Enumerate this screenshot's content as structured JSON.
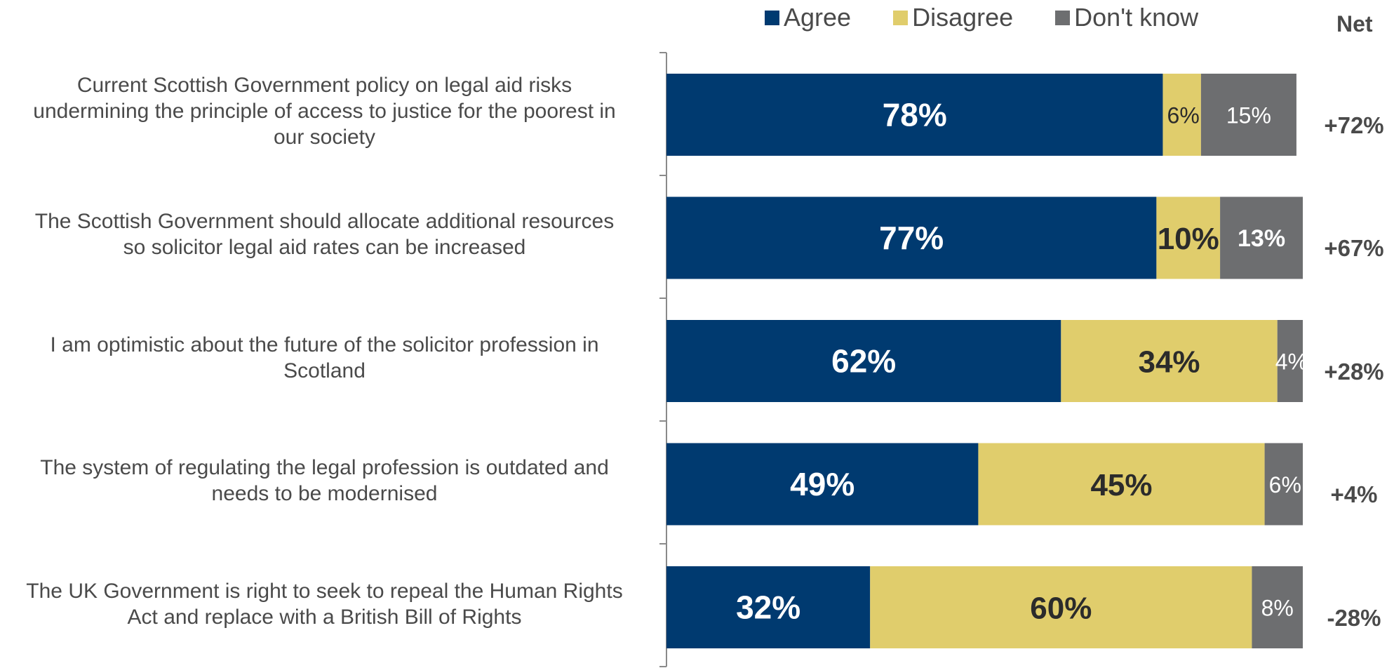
{
  "chart_data": {
    "type": "bar",
    "orientation": "horizontal",
    "stacked": true,
    "categories": [
      "Current Scottish Government policy on legal aid risks undermining the principle of access to justice for the poorest in our society",
      "The Scottish Government should allocate additional resources so solicitor legal aid rates can be increased",
      "I am optimistic about the future of the solicitor profession in Scotland",
      "The system of regulating the legal profession is outdated and needs to be modernised",
      "The UK Government is right to seek to repeal the Human Rights Act and replace with a British Bill of Rights"
    ],
    "category_lines": [
      [
        "Current Scottish Government policy on legal aid risks",
        "undermining the principle of access to justice for the poorest in",
        "our society"
      ],
      [
        "The Scottish Government should allocate additional resources",
        "so solicitor legal aid rates can be increased"
      ],
      [
        "I am optimistic about the future of the solicitor profession in",
        "Scotland"
      ],
      [
        "The system of regulating the legal profession is outdated and",
        "needs to be modernised"
      ],
      [
        "The UK Government is right to seek to repeal the Human Rights",
        "Act and replace with a British Bill of Rights"
      ]
    ],
    "series": [
      {
        "name": "Agree",
        "color": "#003A70",
        "values": [
          78,
          77,
          62,
          49,
          32
        ]
      },
      {
        "name": "Disagree",
        "color": "#E0CD6C",
        "values": [
          6,
          10,
          34,
          45,
          60
        ]
      },
      {
        "name": "Don't know",
        "color": "#6D6E70",
        "values": [
          15,
          13,
          4,
          6,
          8
        ]
      }
    ],
    "data_labels": [
      [
        "78%",
        "6%",
        "15%"
      ],
      [
        "77%",
        "10%",
        "13%"
      ],
      [
        "62%",
        "34%",
        "4%"
      ],
      [
        "49%",
        "45%",
        "6%"
      ],
      [
        "32%",
        "60%",
        "8%"
      ]
    ],
    "net_header": "Net",
    "net_values": [
      "+72%",
      "+67%",
      "+28%",
      "+4%",
      "-28%"
    ],
    "xlim": [
      0,
      100
    ],
    "legend_position": "top",
    "grid": false
  }
}
